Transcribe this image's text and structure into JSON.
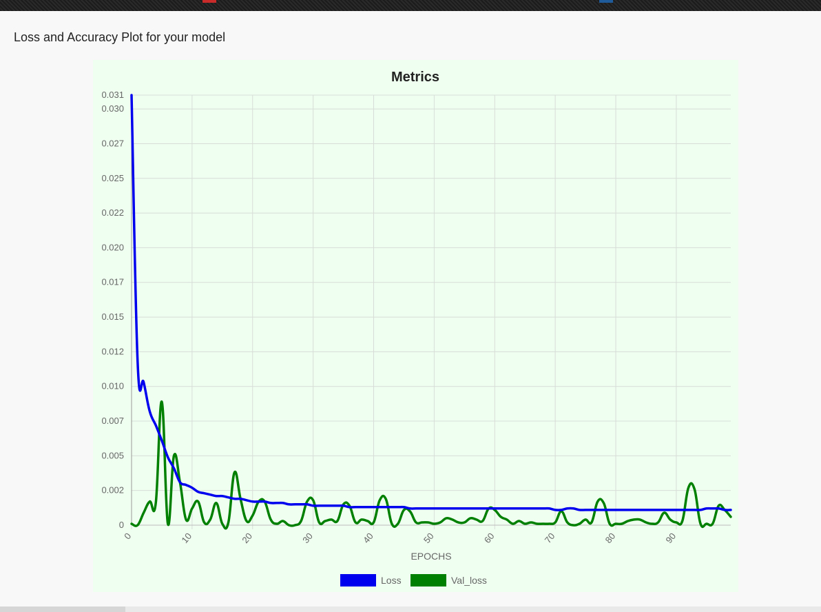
{
  "page": {
    "heading": "Loss and Accuracy Plot for your model"
  },
  "colors": {
    "loss": "#0000ee",
    "val_loss": "#008000",
    "grid": "#d7dcd7",
    "background": "#effff0"
  },
  "chart_data": {
    "type": "line",
    "title": "Metrics",
    "xlabel": "EPOCHS",
    "ylabel": "",
    "grid": true,
    "legend": "bottom",
    "xlim": [
      0,
      99
    ],
    "ylim": [
      0,
      0.031
    ],
    "x_ticks": [
      0,
      10,
      20,
      30,
      40,
      50,
      60,
      70,
      80,
      90
    ],
    "y_ticks": [
      {
        "value": 0,
        "label": "0"
      },
      {
        "value": 0.0025,
        "label": "0.002"
      },
      {
        "value": 0.005,
        "label": "0.005"
      },
      {
        "value": 0.0075,
        "label": "0.007"
      },
      {
        "value": 0.01,
        "label": "0.010"
      },
      {
        "value": 0.0125,
        "label": "0.012"
      },
      {
        "value": 0.015,
        "label": "0.015"
      },
      {
        "value": 0.0175,
        "label": "0.017"
      },
      {
        "value": 0.02,
        "label": "0.020"
      },
      {
        "value": 0.0225,
        "label": "0.022"
      },
      {
        "value": 0.025,
        "label": "0.025"
      },
      {
        "value": 0.0275,
        "label": "0.027"
      },
      {
        "value": 0.03,
        "label": "0.030"
      },
      {
        "value": 0.031,
        "label": "0.031"
      }
    ],
    "series": [
      {
        "name": "Loss",
        "color": "#0000ee",
        "values": [
          0.031,
          0.0118,
          0.0103,
          0.0082,
          0.0072,
          0.0061,
          0.0049,
          0.0041,
          0.0031,
          0.0029,
          0.0027,
          0.0024,
          0.0023,
          0.0022,
          0.0021,
          0.0021,
          0.002,
          0.0019,
          0.0019,
          0.0018,
          0.0017,
          0.0017,
          0.0017,
          0.0016,
          0.0016,
          0.0016,
          0.0015,
          0.0015,
          0.0015,
          0.0015,
          0.0014,
          0.0014,
          0.0014,
          0.0014,
          0.0014,
          0.0014,
          0.0013,
          0.0013,
          0.0013,
          0.0013,
          0.0013,
          0.0013,
          0.0013,
          0.0013,
          0.0013,
          0.0013,
          0.0012,
          0.0012,
          0.0012,
          0.0012,
          0.0012,
          0.0012,
          0.0012,
          0.0012,
          0.0012,
          0.0012,
          0.0012,
          0.0012,
          0.0012,
          0.0012,
          0.0012,
          0.0012,
          0.0012,
          0.0012,
          0.0012,
          0.0012,
          0.0012,
          0.0012,
          0.0012,
          0.0012,
          0.0011,
          0.0011,
          0.0012,
          0.0012,
          0.0011,
          0.0011,
          0.0011,
          0.0011,
          0.0011,
          0.0011,
          0.0011,
          0.0011,
          0.0011,
          0.0011,
          0.0011,
          0.0011,
          0.0011,
          0.0011,
          0.0011,
          0.0011,
          0.0011,
          0.0011,
          0.0011,
          0.0011,
          0.0011,
          0.0012,
          0.0012,
          0.0012,
          0.0011,
          0.0011
        ]
      },
      {
        "name": "Val_loss",
        "color": "#008000",
        "values": [
          0.0001,
          0.0,
          0.0009,
          0.0017,
          0.0016,
          0.0089,
          0.0001,
          0.005,
          0.0031,
          0.0004,
          0.0012,
          0.0017,
          0.0002,
          0.0004,
          0.0016,
          0.0001,
          0.0002,
          0.0038,
          0.0019,
          0.0003,
          0.0007,
          0.0017,
          0.0017,
          0.0004,
          0.0001,
          0.0003,
          0.0,
          0.0,
          0.0003,
          0.0017,
          0.0018,
          0.0002,
          0.0003,
          0.0004,
          0.0003,
          0.0015,
          0.0014,
          0.0002,
          0.0004,
          0.0003,
          0.0002,
          0.0018,
          0.0019,
          0.0001,
          0.0001,
          0.0011,
          0.001,
          0.0002,
          0.0002,
          0.0002,
          0.0001,
          0.0002,
          0.0005,
          0.0004,
          0.0002,
          0.0002,
          0.0005,
          0.0004,
          0.0003,
          0.0012,
          0.0011,
          0.0006,
          0.0004,
          0.0001,
          0.0003,
          0.0001,
          0.0002,
          0.0001,
          0.0001,
          0.0001,
          0.0002,
          0.001,
          0.0002,
          0.0,
          0.0001,
          0.0004,
          0.0002,
          0.0017,
          0.0016,
          0.0001,
          0.0001,
          0.0001,
          0.0003,
          0.0004,
          0.0004,
          0.0002,
          0.0001,
          0.0002,
          0.0009,
          0.0004,
          0.0002,
          0.0003,
          0.0027,
          0.0026,
          0.0001,
          0.0001,
          0.0001,
          0.0014,
          0.0011,
          0.0006
        ]
      }
    ]
  }
}
